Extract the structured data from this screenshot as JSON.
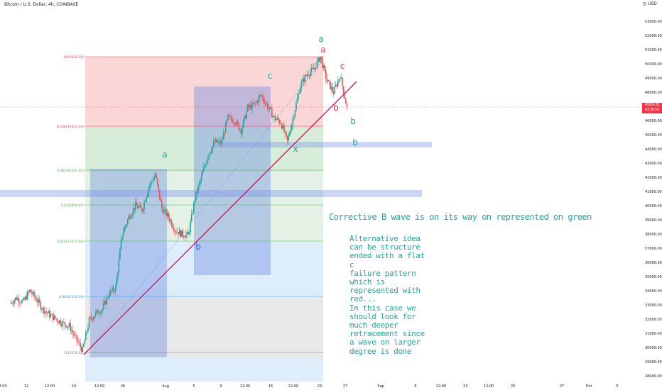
{
  "header": {
    "title": "Bitcoin / U.S. Dollar, 4h, COINBASE",
    "currency": "USD"
  },
  "price_axis": {
    "ticks": [
      "53000.00",
      "52000.00",
      "51000.00",
      "50000.00",
      "49000.00",
      "48000.00",
      "47000.00",
      "46000.00",
      "45000.00",
      "44000.00",
      "43000.00",
      "42000.00",
      "41000.00",
      "40000.00",
      "39000.00",
      "38000.00",
      "37000.00",
      "36000.00",
      "35000.00",
      "34000.00",
      "33000.00",
      "32000.00",
      "31000.00",
      "30000.00",
      "29000.00",
      "28000.00"
    ],
    "last_price": "46934.83",
    "countdown": "03:00:50"
  },
  "time_axis": {
    "ticks": [
      "2:00",
      "12",
      "12:00",
      "19",
      "12:00",
      "26",
      "Aug",
      "5",
      "9",
      "12:00",
      "16",
      "12:00",
      "23",
      "27",
      "Sep",
      "6",
      "12:00",
      "13",
      "12:00",
      "20",
      "27",
      "Oct",
      "5"
    ]
  },
  "fib_levels": [
    {
      "label": "0(50418.79)",
      "color": "#f23645"
    },
    {
      "label": "0.236(45453.20)",
      "color": "#f23645"
    },
    {
      "label": "0.382(42381.40)",
      "color": "#4caf50"
    },
    {
      "label": "0.5(39898.65)",
      "color": "#4caf50"
    },
    {
      "label": "0.618(37415.90)",
      "color": "#4caf50"
    },
    {
      "label": "0.86(32326.36)",
      "color": "#2196f3"
    },
    {
      "label": "1(29378.51)",
      "color": "#787b86"
    }
  ],
  "wave_labels": [
    {
      "text": "a",
      "color": "#26a69a"
    },
    {
      "text": "b",
      "color": "#2962ff"
    },
    {
      "text": "c",
      "color": "#26a69a"
    },
    {
      "text": "x",
      "color": "#26a69a"
    },
    {
      "text": "a",
      "color": "#26a69a"
    },
    {
      "text": "a",
      "color": "#f23645"
    },
    {
      "text": "c",
      "color": "#f23645"
    },
    {
      "text": "b",
      "color": "#f23645"
    },
    {
      "text": "b",
      "color": "#26a69a"
    },
    {
      "text": "b",
      "color": "#26a69a"
    }
  ],
  "notes": {
    "main": "Corrective B wave is on its way on represented on green",
    "alternative": "Alternative idea\ncan be structure\nended with a flat c\nfailure pattern\nwhich is\nrepresented with\nred...\nIn this case we\nshould look for\nmuch deeper\nretracement since\na wave on larger\ndegree is done"
  },
  "colors": {
    "up": "#26a69a",
    "down": "#ef5350",
    "trendline": "#c2185b"
  },
  "chart_data": {
    "type": "candlestick",
    "title": "Bitcoin / U.S. Dollar, 4h, COINBASE",
    "ylim": [
      27500,
      53800
    ],
    "x_range_days": [
      "Jul 9",
      "Oct 7"
    ],
    "close_path": [
      [
        9,
        33100
      ],
      [
        10,
        33500
      ],
      [
        11,
        33200
      ],
      [
        12,
        34000
      ],
      [
        13,
        33400
      ],
      [
        14,
        32700
      ],
      [
        15,
        32300
      ],
      [
        16,
        32000
      ],
      [
        17,
        31700
      ],
      [
        18,
        31500
      ],
      [
        19,
        30600
      ],
      [
        20,
        29800
      ],
      [
        21,
        31900
      ],
      [
        22,
        32400
      ],
      [
        23,
        32700
      ],
      [
        24,
        33800
      ],
      [
        25,
        34200
      ],
      [
        26,
        38000
      ],
      [
        27,
        39200
      ],
      [
        28,
        40000
      ],
      [
        29,
        39700
      ],
      [
        30,
        41300
      ],
      [
        31,
        42200
      ],
      [
        32,
        39800
      ],
      [
        33,
        39200
      ],
      [
        34,
        38300
      ],
      [
        35,
        38000
      ],
      [
        36,
        37900
      ],
      [
        37,
        40500
      ],
      [
        38,
        42000
      ],
      [
        39,
        43600
      ],
      [
        40,
        44500
      ],
      [
        41,
        44400
      ],
      [
        42,
        46200
      ],
      [
        43,
        46000
      ],
      [
        44,
        45300
      ],
      [
        45,
        46900
      ],
      [
        46,
        47100
      ],
      [
        47,
        47800
      ],
      [
        48,
        47000
      ],
      [
        49,
        46200
      ],
      [
        50,
        45900
      ],
      [
        51,
        44500
      ],
      [
        52,
        46500
      ],
      [
        53,
        48500
      ],
      [
        54,
        49300
      ],
      [
        55,
        49600
      ],
      [
        56,
        50500
      ],
      [
        57,
        48800
      ],
      [
        58,
        48000
      ],
      [
        59,
        49200
      ],
      [
        60,
        46934
      ]
    ]
  }
}
